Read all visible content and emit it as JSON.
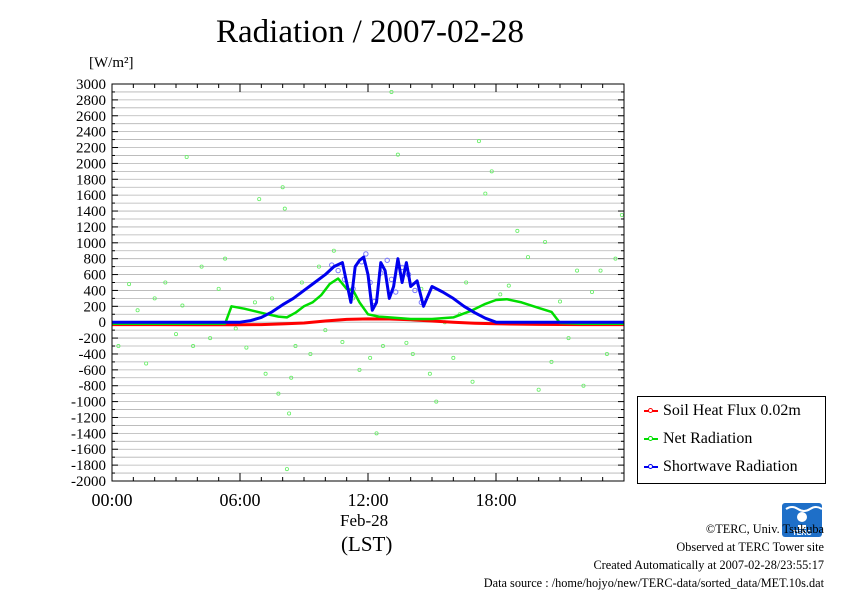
{
  "chart_data": {
    "type": "line",
    "title": "Radiation / 2007-02-28",
    "ylabel": "[W/m²]",
    "xdate": "Feb-28",
    "xunit": "(LST)",
    "xlim": [
      0,
      24
    ],
    "ylim": [
      -2000,
      3000
    ],
    "y_ticks": [
      3000,
      2800,
      2600,
      2400,
      2200,
      2000,
      1800,
      1600,
      1400,
      1200,
      1000,
      800,
      600,
      400,
      200,
      0,
      -200,
      -400,
      -600,
      -800,
      -1000,
      -1200,
      -1400,
      -1600,
      -1800,
      -2000
    ],
    "x_ticks": [
      {
        "value": 0,
        "label": "00:00"
      },
      {
        "value": 6,
        "label": "06:00"
      },
      {
        "value": 12,
        "label": "12:00"
      },
      {
        "value": 18,
        "label": "18:00"
      }
    ],
    "grid": true,
    "legend_position": "bottom-right",
    "series": [
      {
        "name": "Soil Heat Flux 0.02m",
        "color": "#ff0000",
        "x": [
          0,
          2,
          4,
          6,
          7,
          8,
          9,
          10,
          11,
          12,
          13,
          14,
          15,
          16,
          17,
          18,
          20,
          22,
          24
        ],
        "y": [
          -30,
          -30,
          -32,
          -32,
          -30,
          -22,
          -10,
          15,
          35,
          42,
          40,
          30,
          15,
          0,
          -12,
          -20,
          -28,
          -30,
          -30
        ]
      },
      {
        "name": "Net Radiation",
        "color": "#00dd00",
        "x": [
          0,
          2,
          4,
          5.3,
          5.6,
          6.2,
          7.3,
          7.8,
          8.2,
          8.6,
          9,
          9.4,
          9.8,
          10.2,
          10.6,
          11,
          11.3,
          11.6,
          12,
          12.5,
          13,
          14,
          14.5,
          15,
          16,
          16.8,
          17.5,
          18,
          18.5,
          19.2,
          20,
          20.6,
          21,
          22,
          23,
          24
        ],
        "y": [
          -20,
          -20,
          -20,
          -18,
          200,
          170,
          100,
          70,
          60,
          120,
          200,
          250,
          340,
          480,
          550,
          420,
          400,
          250,
          100,
          70,
          60,
          40,
          40,
          40,
          60,
          140,
          230,
          280,
          290,
          250,
          180,
          130,
          -10,
          -20,
          -20,
          -20
        ]
      },
      {
        "name": "Shortwave Radiation",
        "color": "#0000ee",
        "x": [
          0,
          2,
          4,
          6,
          6.5,
          7,
          7.5,
          8,
          8.5,
          9,
          9.5,
          10,
          10.4,
          10.8,
          11.2,
          11.4,
          11.6,
          11.8,
          12,
          12.2,
          12.4,
          12.6,
          12.8,
          13,
          13.2,
          13.4,
          13.6,
          13.8,
          14,
          14.3,
          14.6,
          15,
          15.5,
          16,
          16.5,
          17,
          17.5,
          18,
          20,
          22,
          24
        ],
        "y": [
          0,
          0,
          0,
          0,
          20,
          60,
          130,
          220,
          300,
          400,
          500,
          600,
          700,
          750,
          250,
          700,
          780,
          820,
          600,
          150,
          250,
          750,
          650,
          300,
          450,
          800,
          500,
          750,
          450,
          520,
          200,
          450,
          380,
          300,
          200,
          120,
          50,
          0,
          0,
          0,
          0
        ]
      }
    ],
    "scatter_green": [
      [
        0.3,
        -300
      ],
      [
        0.8,
        480
      ],
      [
        1.2,
        150
      ],
      [
        1.6,
        -520
      ],
      [
        2,
        300
      ],
      [
        2.5,
        500
      ],
      [
        3,
        -150
      ],
      [
        3.3,
        210
      ],
      [
        3.5,
        2080
      ],
      [
        3.8,
        -300
      ],
      [
        4.2,
        700
      ],
      [
        4.6,
        -200
      ],
      [
        5,
        420
      ],
      [
        5.3,
        800
      ],
      [
        5.8,
        -80
      ],
      [
        6.3,
        -320
      ],
      [
        6.7,
        250
      ],
      [
        6.9,
        1550
      ],
      [
        7.2,
        -650
      ],
      [
        7.5,
        300
      ],
      [
        7.8,
        -900
      ],
      [
        8,
        1700
      ],
      [
        8.1,
        1430
      ],
      [
        8.2,
        -1850
      ],
      [
        8.3,
        -1150
      ],
      [
        8.4,
        -700
      ],
      [
        8.6,
        -300
      ],
      [
        8.9,
        500
      ],
      [
        9.3,
        -400
      ],
      [
        9.7,
        700
      ],
      [
        10,
        -100
      ],
      [
        10.4,
        900
      ],
      [
        10.8,
        -250
      ],
      [
        11.3,
        300
      ],
      [
        11.6,
        -600
      ],
      [
        12.1,
        -450
      ],
      [
        12.4,
        -1400
      ],
      [
        12.7,
        -300
      ],
      [
        13.1,
        2900
      ],
      [
        13.4,
        2110
      ],
      [
        13.8,
        -260
      ],
      [
        14.1,
        -400
      ],
      [
        14.5,
        420
      ],
      [
        14.9,
        -650
      ],
      [
        15.2,
        -1000
      ],
      [
        15.6,
        0
      ],
      [
        16,
        -450
      ],
      [
        16.3,
        100
      ],
      [
        16.6,
        500
      ],
      [
        16.9,
        -750
      ],
      [
        17.2,
        2280
      ],
      [
        17.5,
        1620
      ],
      [
        17.8,
        1900
      ],
      [
        18.2,
        350
      ],
      [
        18.6,
        460
      ],
      [
        19,
        1150
      ],
      [
        19.5,
        820
      ],
      [
        20,
        -850
      ],
      [
        20.3,
        1010
      ],
      [
        20.6,
        -500
      ],
      [
        21,
        260
      ],
      [
        21.4,
        -200
      ],
      [
        21.8,
        650
      ],
      [
        22.1,
        -800
      ],
      [
        22.5,
        380
      ],
      [
        22.9,
        650
      ],
      [
        23.2,
        -400
      ],
      [
        23.6,
        800
      ],
      [
        23.9,
        1350
      ]
    ],
    "scatter_blue": [
      [
        10.3,
        720
      ],
      [
        10.6,
        650
      ],
      [
        10.9,
        540
      ],
      [
        11.3,
        420
      ],
      [
        11.7,
        760
      ],
      [
        11.9,
        860
      ],
      [
        12.1,
        500
      ],
      [
        12.3,
        260
      ],
      [
        12.6,
        620
      ],
      [
        12.9,
        780
      ],
      [
        13.1,
        540
      ],
      [
        13.3,
        380
      ],
      [
        13.6,
        690
      ],
      [
        13.9,
        600
      ],
      [
        14.2,
        400
      ],
      [
        14.5,
        250
      ]
    ]
  },
  "credits": {
    "line1": "©TERC, Univ. Tsukuba",
    "line2": "Observed at TERC Tower site",
    "line3": "Created Automatically at 2007-02-28/23:55:17",
    "line4": "Data source : /home/hojyo/new/TERC-data/sorted_data/MET.10s.dat"
  },
  "logo": {
    "text": "TERC",
    "color": "#1e6fc8"
  }
}
